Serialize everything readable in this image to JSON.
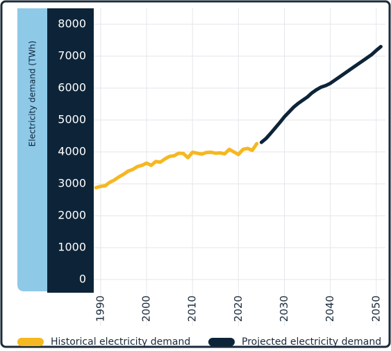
{
  "chart_data": {
    "type": "line",
    "ylabel": "Electricity demand (TWh)",
    "xlim": [
      1988.5,
      2052
    ],
    "ylim": [
      0,
      8000
    ],
    "xticks": [
      1990,
      2000,
      2010,
      2020,
      2030,
      2040,
      2050
    ],
    "yticks": [
      0,
      1000,
      2000,
      3000,
      4000,
      5000,
      6000,
      7000,
      8000
    ],
    "grid": true,
    "legend": "bottom",
    "series": [
      {
        "name": "Historical electricity demand",
        "color": "#f5b820",
        "x": [
          1989,
          1990,
          1991,
          1992,
          1993,
          1994,
          1995,
          1996,
          1997,
          1998,
          1999,
          2000,
          2001,
          2002,
          2003,
          2004,
          2005,
          2006,
          2007,
          2008,
          2009,
          2010,
          2011,
          2012,
          2013,
          2014,
          2015,
          2016,
          2017,
          2018,
          2019,
          2020,
          2021,
          2022,
          2023,
          2024
        ],
        "values": [
          2880,
          2920,
          2940,
          3050,
          3120,
          3220,
          3300,
          3400,
          3450,
          3540,
          3580,
          3650,
          3580,
          3700,
          3680,
          3780,
          3860,
          3880,
          3960,
          3950,
          3820,
          3990,
          3960,
          3930,
          3980,
          3990,
          3960,
          3970,
          3940,
          4080,
          4000,
          3920,
          4080,
          4110,
          4050,
          4260
        ]
      },
      {
        "name": "Projected electricity demand",
        "color": "#0d2438",
        "x": [
          2025,
          2026,
          2027,
          2028,
          2029,
          2030,
          2031,
          2032,
          2033,
          2034,
          2035,
          2036,
          2037,
          2038,
          2039,
          2040,
          2041,
          2042,
          2043,
          2044,
          2045,
          2046,
          2047,
          2048,
          2049,
          2050,
          2051
        ],
        "values": [
          4300,
          4420,
          4580,
          4750,
          4920,
          5100,
          5250,
          5400,
          5520,
          5620,
          5720,
          5850,
          5950,
          6030,
          6080,
          6150,
          6250,
          6350,
          6450,
          6550,
          6650,
          6750,
          6850,
          6950,
          7050,
          7180,
          7300
        ]
      }
    ]
  }
}
